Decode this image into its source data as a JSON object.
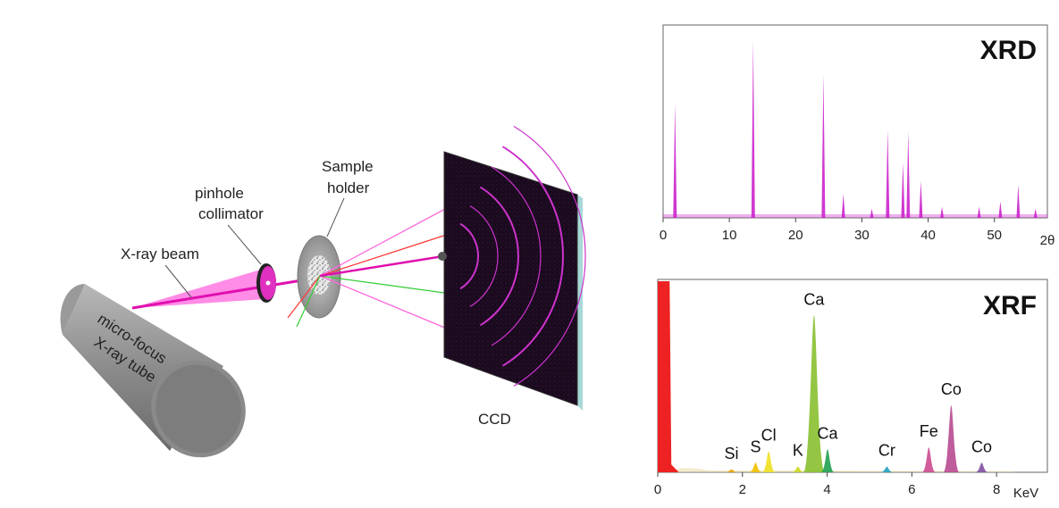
{
  "diagram": {
    "labels": {
      "tube_line1": "micro-focus",
      "tube_line2": "X-ray tube",
      "beam": "X-ray beam",
      "collimator_line1": "pinhole",
      "collimator_line2": "collimator",
      "holder_line1": "Sample",
      "holder_line2": "holder",
      "detector": "CCD"
    },
    "colors": {
      "beam": "#ff33cc",
      "tube": "#8a8a8a",
      "detector_bg": "#1a0a1e",
      "rings": "#cc33cc"
    }
  },
  "chart_data": [
    {
      "type": "line",
      "title": "XRD",
      "x_axis_label": "2θ",
      "x_ticks": [
        "0",
        "10",
        "20",
        "30",
        "40",
        "50"
      ],
      "xlim": [
        0,
        58
      ],
      "ylim": [
        0,
        100
      ],
      "baseline": 2,
      "color": "#cc22cc",
      "peaks": [
        {
          "x": 1.8,
          "y": 62
        },
        {
          "x": 13.6,
          "y": 96
        },
        {
          "x": 24.2,
          "y": 78
        },
        {
          "x": 27.2,
          "y": 13
        },
        {
          "x": 31.5,
          "y": 5
        },
        {
          "x": 33.9,
          "y": 48
        },
        {
          "x": 36.2,
          "y": 30
        },
        {
          "x": 37.0,
          "y": 47
        },
        {
          "x": 38.9,
          "y": 20
        },
        {
          "x": 42.1,
          "y": 6
        },
        {
          "x": 47.7,
          "y": 6
        },
        {
          "x": 50.9,
          "y": 9
        },
        {
          "x": 53.6,
          "y": 18
        },
        {
          "x": 56.2,
          "y": 5
        }
      ]
    },
    {
      "type": "area",
      "title": "XRF",
      "x_axis_label": "KeV",
      "x_ticks": [
        "0",
        "2",
        "4",
        "6",
        "8"
      ],
      "xlim": [
        0,
        9.2
      ],
      "ylim": [
        0,
        100
      ],
      "peaks": [
        {
          "label": "Si",
          "x": 1.74,
          "y": 1.5,
          "color": "#e8a000"
        },
        {
          "label": "S",
          "x": 2.31,
          "y": 5,
          "color": "#f0c000"
        },
        {
          "label": "Cl",
          "x": 2.62,
          "y": 11,
          "color": "#f0e020"
        },
        {
          "label": "K",
          "x": 3.31,
          "y": 3,
          "color": "#c8d820"
        },
        {
          "label": "Ca",
          "x": 3.69,
          "y": 82,
          "color": "#88c030"
        },
        {
          "label": "Ca",
          "x": 4.01,
          "y": 12,
          "color": "#20a050"
        },
        {
          "label": "Cr",
          "x": 5.41,
          "y": 3,
          "color": "#20a0c0"
        },
        {
          "label": "Fe",
          "x": 6.4,
          "y": 13,
          "color": "#cc4a90"
        },
        {
          "label": "Co",
          "x": 6.93,
          "y": 35,
          "color": "#b84a90"
        },
        {
          "label": "Co",
          "x": 7.65,
          "y": 5,
          "color": "#8050a0"
        }
      ],
      "low_energy_peak": {
        "x": 0.1,
        "y": 100,
        "color": "#ee2222"
      }
    }
  ]
}
